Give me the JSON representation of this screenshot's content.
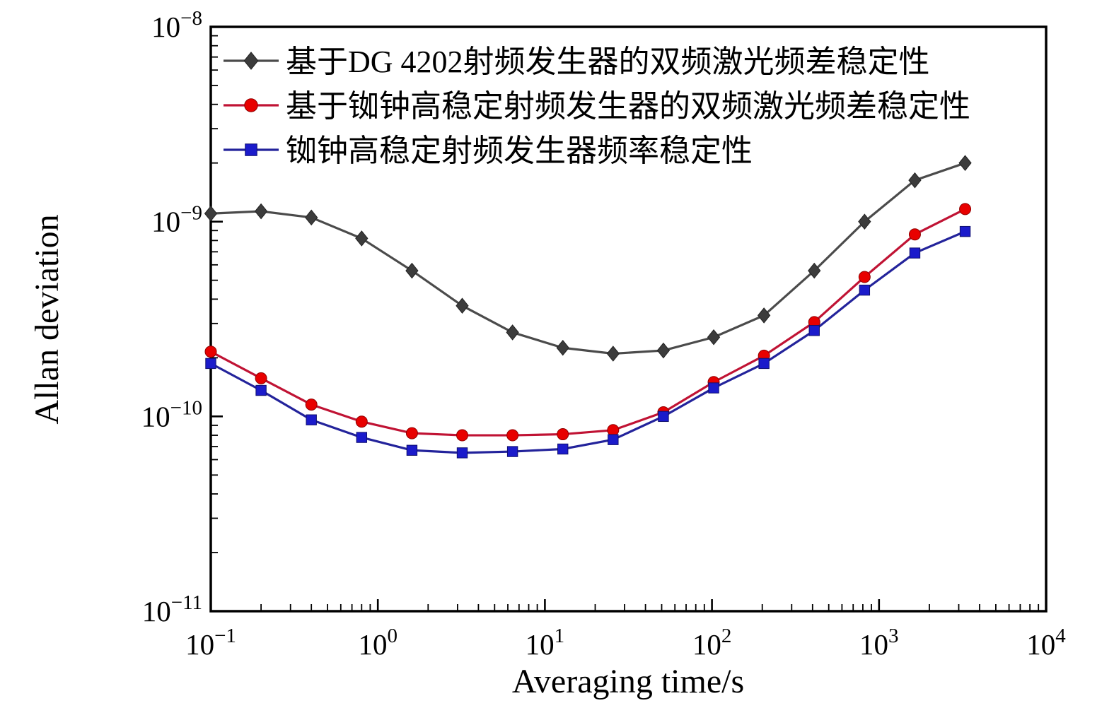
{
  "chart_data": {
    "type": "line",
    "title": "",
    "xlabel": "Averaging time/s",
    "ylabel": "Allan deviation",
    "x_scale": "log",
    "y_scale": "log",
    "xlim": [
      0.1,
      10000
    ],
    "ylim": [
      1e-11,
      1e-08
    ],
    "x_tick_labels": [
      "10⁻¹",
      "10⁰",
      "10¹",
      "10²",
      "10³",
      "10⁴"
    ],
    "y_tick_labels": [
      "10⁻⁸",
      "10⁻⁹",
      "10⁻¹⁰",
      "10⁻¹¹"
    ],
    "x_tick_exponents": [
      -1,
      0,
      1,
      2,
      3,
      4
    ],
    "y_tick_exponents": [
      -8,
      -9,
      -10,
      -11
    ],
    "grid": false,
    "legend_position": "top-left-inside",
    "x": [
      0.1,
      0.2,
      0.4,
      0.8,
      1.6,
      3.2,
      6.4,
      12.8,
      25.6,
      51.2,
      102.4,
      204.8,
      409.6,
      819.2,
      1638.4,
      3276.8
    ],
    "series": [
      {
        "name": "基于DG 4202射频发生器的双频激光频差稳定性",
        "marker": "diamond",
        "line_color": "#4b4b4b",
        "marker_color": "#3c3c3c",
        "values": [
          1.1e-09,
          1.13e-09,
          1.05e-09,
          8.2e-10,
          5.6e-10,
          3.7e-10,
          2.7e-10,
          2.25e-10,
          2.1e-10,
          2.18e-10,
          2.55e-10,
          3.3e-10,
          5.6e-10,
          1e-09,
          1.63e-09,
          2e-09
        ]
      },
      {
        "name": "基于铷钟高稳定射频发生器的双频激光频差稳定性",
        "marker": "circle",
        "line_color": "#c01334",
        "marker_color": "#e80000",
        "values": [
          2.15e-10,
          1.57e-10,
          1.15e-10,
          9.4e-11,
          8.2e-11,
          8e-11,
          8e-11,
          8.1e-11,
          8.5e-11,
          1.05e-10,
          1.5e-10,
          2.05e-10,
          3.05e-10,
          5.2e-10,
          8.6e-10,
          1.16e-09
        ]
      },
      {
        "name": "铷钟高稳定射频发生器频率稳定性",
        "marker": "square",
        "line_color": "#23239b",
        "marker_color": "#1b1bcb",
        "values": [
          1.87e-10,
          1.36e-10,
          9.6e-11,
          7.8e-11,
          6.7e-11,
          6.5e-11,
          6.6e-11,
          6.8e-11,
          7.6e-11,
          1e-10,
          1.4e-10,
          1.87e-10,
          2.76e-10,
          4.45e-10,
          6.9e-10,
          8.9e-10
        ]
      }
    ]
  }
}
